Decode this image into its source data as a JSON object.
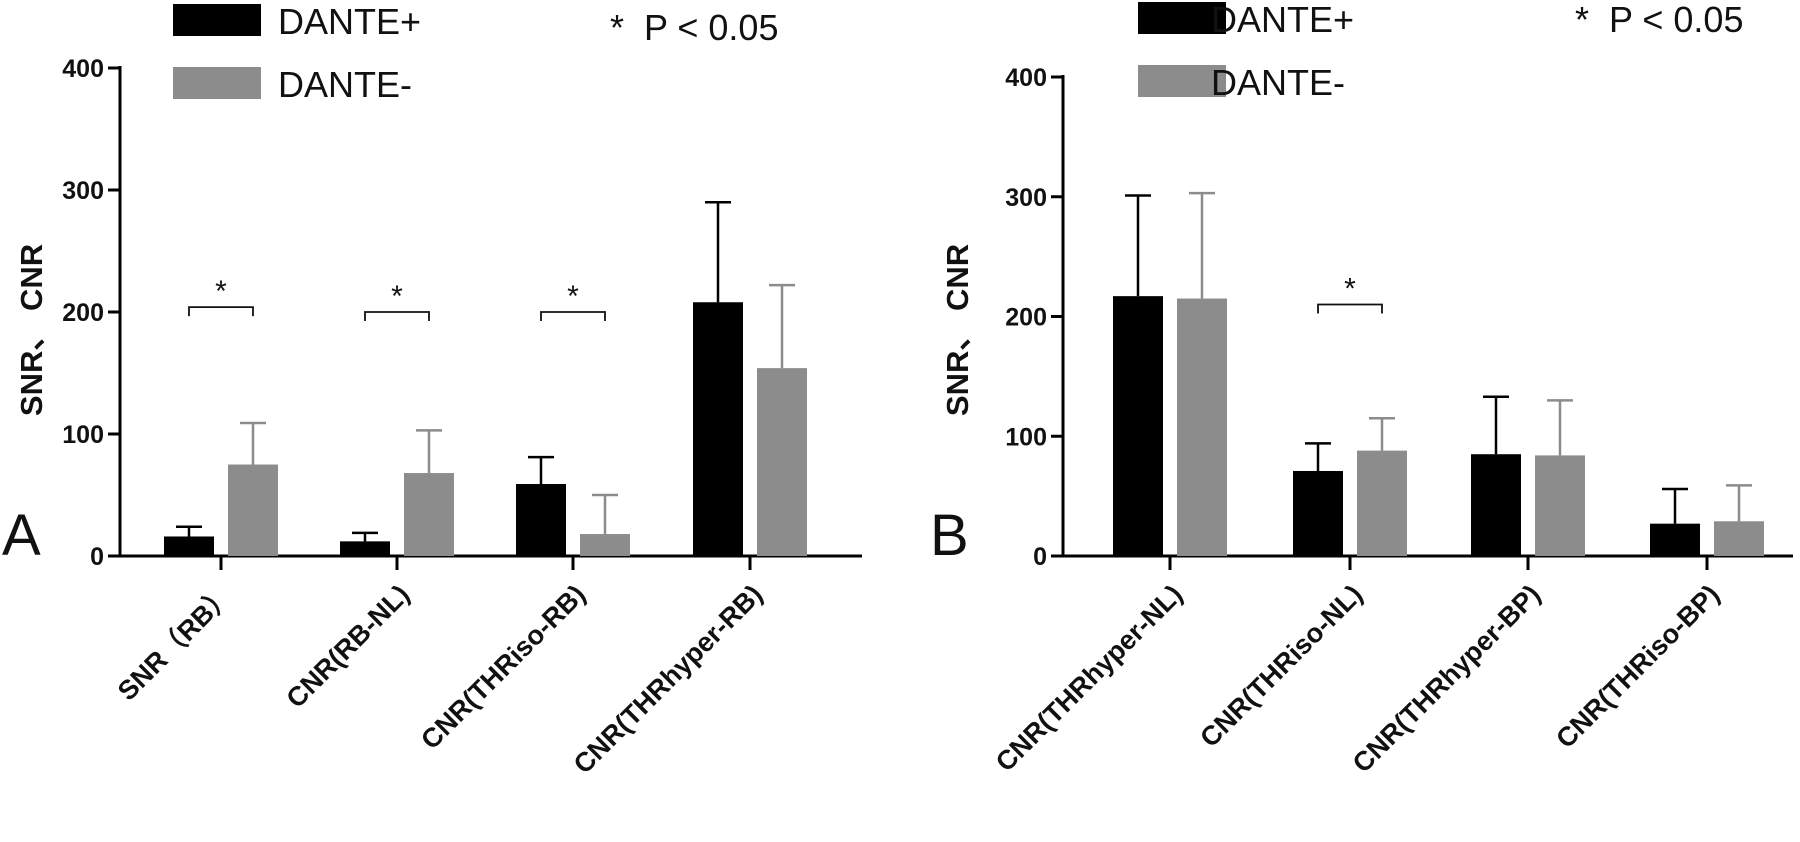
{
  "colors": {
    "dante_plus": "#000000",
    "dante_minus": "#8c8c8c",
    "axis": "#000000"
  },
  "legend": {
    "dante_plus": "DANTE+",
    "dante_minus": "DANTE-"
  },
  "significance_note": "*  P < 0.05",
  "significance_marker": "*",
  "chart_data": [
    {
      "type": "bar",
      "panel_label": "A",
      "ylabel": "SNR、 CNR",
      "ylim": [
        0,
        400
      ],
      "yticks": [
        0,
        100,
        200,
        300,
        400
      ],
      "categories": [
        "SNR（RB）",
        "CNR(RB-NL)",
        "CNR(THRiso-RB)",
        "CNR(THRhyper-RB)"
      ],
      "series": [
        {
          "name": "DANTE+",
          "values": [
            16,
            12,
            59,
            208
          ],
          "error": [
            8,
            7,
            22,
            82
          ]
        },
        {
          "name": "DANTE-",
          "values": [
            75,
            68,
            18,
            154
          ],
          "error": [
            34,
            35,
            32,
            68
          ]
        }
      ],
      "significant": [
        true,
        true,
        true,
        false
      ],
      "legend_position": "top-left"
    },
    {
      "type": "bar",
      "panel_label": "B",
      "ylabel": "SNR、 CNR",
      "ylim": [
        0,
        400
      ],
      "yticks": [
        0,
        100,
        200,
        300,
        400
      ],
      "categories": [
        "CNR(THRhyper-NL)",
        "CNR(THRiso-NL)",
        "CNR(THRhyper-BP)",
        "CNR(THRiso-BP)"
      ],
      "series": [
        {
          "name": "DANTE+",
          "values": [
            217,
            71,
            85,
            27
          ],
          "error": [
            84,
            23,
            48,
            29
          ]
        },
        {
          "name": "DANTE-",
          "values": [
            215,
            88,
            84,
            29
          ],
          "error": [
            88,
            27,
            46,
            30
          ]
        }
      ],
      "significant": [
        false,
        true,
        false,
        false
      ],
      "legend_position": "top-left"
    }
  ]
}
